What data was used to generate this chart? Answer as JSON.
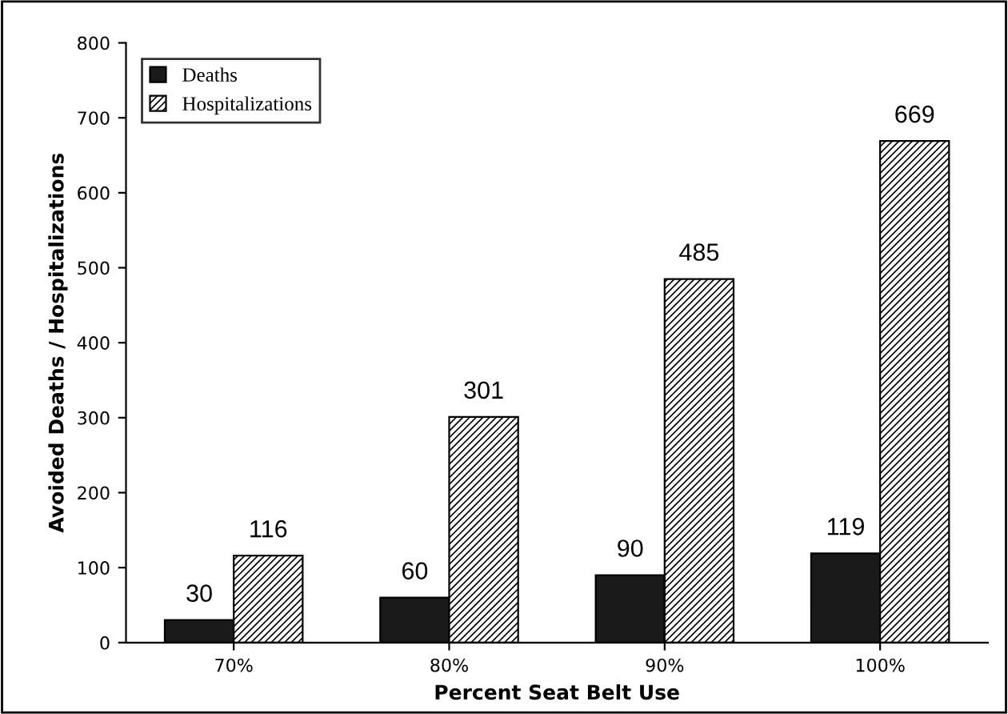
{
  "chart_data": {
    "type": "bar",
    "xlabel": "Percent Seat Belt Use",
    "ylabel": "Avoided Deaths / Hospitalizations",
    "categories": [
      "70%",
      "80%",
      "90%",
      "100%"
    ],
    "series": [
      {
        "name": "Deaths",
        "color": "#1a1a1a",
        "values": [
          30,
          60,
          90,
          119
        ]
      },
      {
        "name": "Hospitalizations",
        "color": "#000000",
        "values": [
          116,
          301,
          485,
          669
        ]
      }
    ],
    "ylim": [
      0,
      800
    ],
    "yticks": [
      0,
      100,
      200,
      300,
      400,
      500,
      600,
      700,
      800
    ],
    "data_labels": true,
    "legend": "top left",
    "grid": false
  }
}
